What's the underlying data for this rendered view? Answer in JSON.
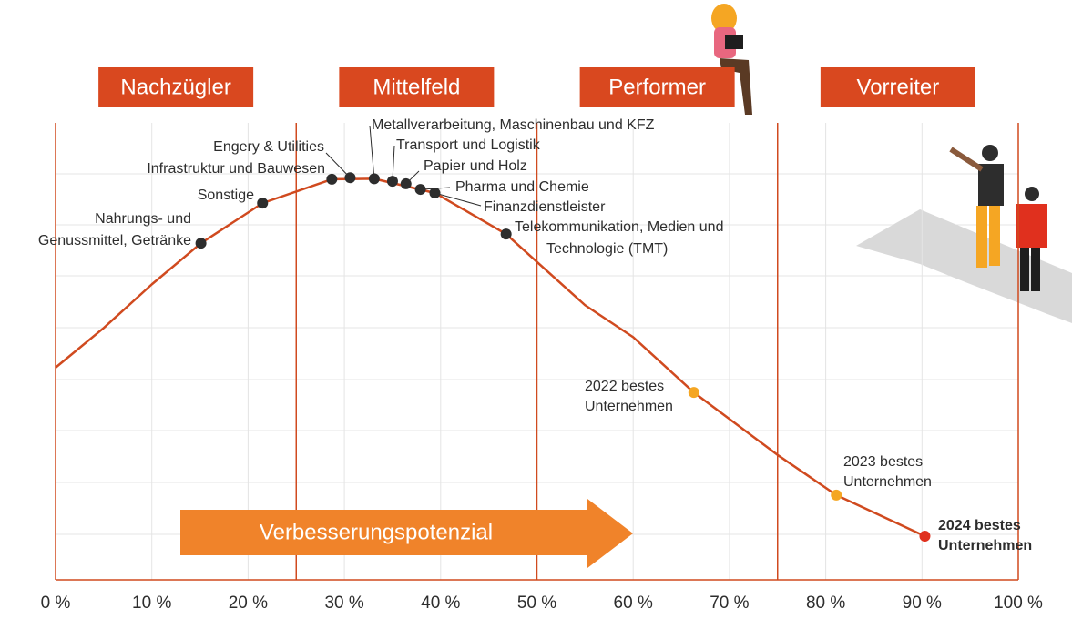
{
  "chart_data": {
    "type": "line",
    "phases": [
      "Nachzügler",
      "Mittelfeld",
      "Performer",
      "Vorreiter"
    ],
    "arrow_label": "Verbesserungspotenzial",
    "xlim": [
      0,
      100
    ],
    "ylim": [
      0,
      9
    ],
    "xticks": [
      {
        "value": 0,
        "label": "0 %"
      },
      {
        "value": 10,
        "label": "10 %"
      },
      {
        "value": 20,
        "label": "20 %"
      },
      {
        "value": 30,
        "label": "30 %"
      },
      {
        "value": 40,
        "label": "40 %"
      },
      {
        "value": 50,
        "label": "50 %"
      },
      {
        "value": 60,
        "label": "60 %"
      },
      {
        "value": 70,
        "label": "70 %"
      },
      {
        "value": 80,
        "label": "80 %"
      },
      {
        "value": 90,
        "label": "90 %"
      },
      {
        "value": 100,
        "label": "100 %"
      }
    ],
    "curve": {
      "color": "#d04a1f",
      "x": [
        0,
        5,
        10,
        15.1,
        21.5,
        28.7,
        33.1,
        39.4,
        46.8,
        55,
        60,
        66.3,
        75,
        81.1,
        90.3
      ],
      "values": [
        4.18,
        4.96,
        5.82,
        6.63,
        7.42,
        7.89,
        7.9,
        7.62,
        6.81,
        5.41,
        4.78,
        3.69,
        2.46,
        1.67,
        0.86
      ]
    },
    "points": [
      {
        "label": [
          "Nahrungs- und",
          "Genussmittel, Getränke"
        ],
        "x": 15.1,
        "y": 6.63,
        "color": "#2d2d2d"
      },
      {
        "label": [
          "Sonstige"
        ],
        "x": 21.5,
        "y": 7.42,
        "color": "#2d2d2d"
      },
      {
        "label": [
          "Infrastruktur und Bauwesen"
        ],
        "x": 28.7,
        "y": 7.89,
        "color": "#2d2d2d"
      },
      {
        "label": [
          "Engery & Utilities"
        ],
        "x": 30.6,
        "y": 7.92,
        "color": "#2d2d2d"
      },
      {
        "label": [
          "Metallverarbeitung, Maschinenbau und KFZ"
        ],
        "x": 33.1,
        "y": 7.9,
        "color": "#2d2d2d"
      },
      {
        "label": [
          "Transport und Logistik"
        ],
        "x": 35.0,
        "y": 7.85,
        "color": "#2d2d2d"
      },
      {
        "label": [
          "Papier und Holz"
        ],
        "x": 36.4,
        "y": 7.8,
        "color": "#2d2d2d"
      },
      {
        "label": [
          "Pharma und Chemie"
        ],
        "x": 37.9,
        "y": 7.69,
        "color": "#2d2d2d"
      },
      {
        "label": [
          "Finanzdienstleister"
        ],
        "x": 39.4,
        "y": 7.62,
        "color": "#2d2d2d"
      },
      {
        "label": [
          "Telekommunikation, Medien und",
          "Technologie (TMT)"
        ],
        "x": 46.8,
        "y": 6.81,
        "color": "#2d2d2d"
      },
      {
        "label": [
          "2022 bestes",
          "Unternehmen"
        ],
        "x": 66.3,
        "y": 3.69,
        "color": "#f5a623"
      },
      {
        "label": [
          "2023 bestes",
          "Unternehmen"
        ],
        "x": 81.1,
        "y": 1.67,
        "color": "#f5a623"
      },
      {
        "label": [
          "2024 bestes",
          "Unternehmen"
        ],
        "x": 90.3,
        "y": 0.86,
        "color": "#e0301e"
      }
    ]
  }
}
